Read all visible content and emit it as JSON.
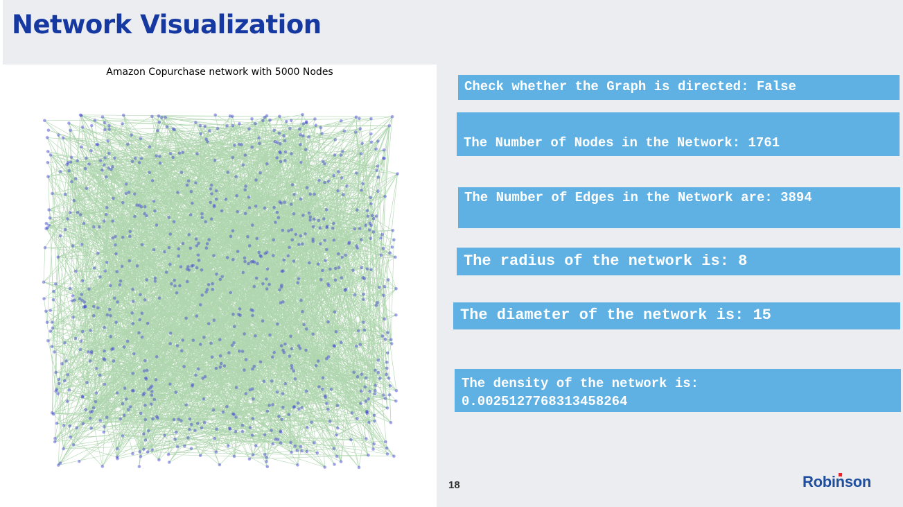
{
  "slide": {
    "title": "Network Visualization",
    "page_number": "18",
    "logo_text": "Robinson"
  },
  "figure": {
    "title": "Amazon Copurchase network with 5000 Nodes",
    "node_color": "#3b3bd6",
    "edge_color": "#1a8a1a"
  },
  "stats": {
    "directed": "Check whether the Graph is directed: False",
    "nodes": "The Number of Nodes in the Network: 1761",
    "edges": "The Number of Edges in the Network are: 3894",
    "radius": "The radius of the network is: 8",
    "diameter": "The diameter of the network is: 15",
    "density_label": "The density of the network is:",
    "density_value": "0.0025127768313458264"
  },
  "colors": {
    "title": "#1538a1",
    "stat_box": "#5fb1e3",
    "background": "#ebedf0",
    "logo": "#1f4e9e"
  }
}
